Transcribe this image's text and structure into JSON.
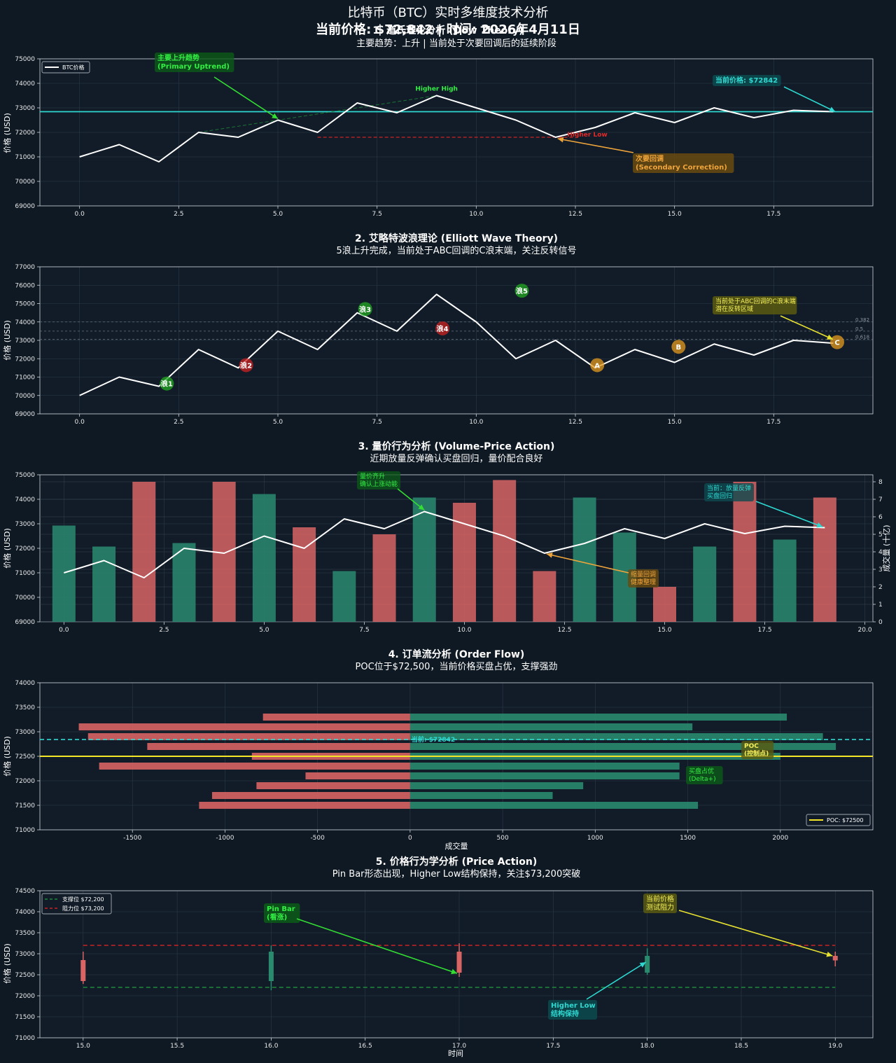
{
  "suptitle": {
    "line1": "比特币（BTC）实时多维度技术分析",
    "line2": "当前价格: $72,842 | 时间: 2026年4月11日"
  },
  "chart_data": [
    {
      "type": "line",
      "title": "1. 道氏理论分析 (Dow Theory)",
      "subtitle": "主要趋势：上升 | 当前处于次要回调后的延续阶段",
      "ylabel": "价格 (USD)",
      "xlabel": "",
      "xlim": [
        -1,
        20
      ],
      "ylim": [
        69000,
        75000
      ],
      "xticks": [
        0.0,
        2.5,
        5.0,
        7.5,
        10.0,
        12.5,
        15.0,
        17.5
      ],
      "xtick_labels": [
        "0.0",
        "2.5",
        "5.0",
        "7.5",
        "10.0",
        "12.5",
        "15.0",
        "17.5"
      ],
      "yticks": [
        69000,
        70000,
        71000,
        72000,
        73000,
        74000,
        75000
      ],
      "ytick_labels": [
        "69000",
        "70000",
        "71000",
        "72000",
        "73000",
        "74000",
        "75000"
      ],
      "series": [
        {
          "name": "BTC价格",
          "x": [
            0,
            1,
            2,
            3,
            4,
            5,
            6,
            7,
            8,
            9,
            10,
            11,
            12,
            13,
            14,
            15,
            16,
            17,
            18,
            19
          ],
          "values": [
            71000,
            71500,
            70800,
            72000,
            71800,
            72500,
            72000,
            73200,
            72800,
            73500,
            73000,
            72500,
            71800,
            72200,
            72800,
            72400,
            73000,
            72600,
            72900,
            72842
          ]
        }
      ],
      "current_price": 72842,
      "secondary_low": 71800,
      "trend_line": {
        "from": [
          3,
          72000
        ],
        "to": [
          9,
          73500
        ]
      },
      "legend": [
        "BTC价格"
      ],
      "labels": {
        "primary": "主要上升趋势\n(Primary Uptrend)",
        "higher_high": "Higher High",
        "higher_low": "Higher Low",
        "current": "当前价格: $72842",
        "correction": "次要回调\n(Secondary Correction)"
      }
    },
    {
      "type": "line",
      "title": "2. 艾略特波浪理论 (Elliott Wave Theory)",
      "subtitle": "5浪上升完成，当前处于ABC回调的C浪末端，关注反转信号",
      "ylabel": "价格 (USD)",
      "xlim": [
        -1,
        20
      ],
      "ylim": [
        69000,
        77000
      ],
      "xticks": [
        0.0,
        2.5,
        5.0,
        7.5,
        10.0,
        12.5,
        15.0,
        17.5
      ],
      "xtick_labels": [
        "0.0",
        "2.5",
        "5.0",
        "7.5",
        "10.0",
        "12.5",
        "15.0",
        "17.5"
      ],
      "yticks": [
        69000,
        70000,
        71000,
        72000,
        73000,
        74000,
        75000,
        76000,
        77000
      ],
      "ytick_labels": [
        "69000",
        "70000",
        "71000",
        "72000",
        "73000",
        "74000",
        "75000",
        "76000",
        "77000"
      ],
      "series": [
        {
          "name": "BTC价格",
          "x": [
            0,
            1,
            2,
            3,
            4,
            5,
            6,
            7,
            8,
            9,
            10,
            11,
            12,
            13,
            14,
            15,
            16,
            17,
            18,
            19
          ],
          "values": [
            70000,
            71000,
            70500,
            72500,
            71500,
            73500,
            72500,
            74500,
            73500,
            75500,
            74000,
            72000,
            73000,
            71500,
            72500,
            71800,
            72800,
            72200,
            73000,
            72842
          ]
        }
      ],
      "waves": [
        {
          "label": "浪1",
          "x": 2.2,
          "y": 70650,
          "color": "#22aa22"
        },
        {
          "label": "浪2",
          "x": 4.2,
          "y": 71650,
          "color": "#cc2222"
        },
        {
          "label": "浪3",
          "x": 7.2,
          "y": 74700,
          "color": "#22aa22"
        },
        {
          "label": "浪4",
          "x": 9.15,
          "y": 73650,
          "color": "#cc2222"
        },
        {
          "label": "浪5",
          "x": 11.15,
          "y": 75700,
          "color": "#22aa22"
        },
        {
          "label": "A",
          "x": 13.05,
          "y": 71650,
          "color": "#e69a1e"
        },
        {
          "label": "B",
          "x": 15.1,
          "y": 72650,
          "color": "#e69a1e"
        },
        {
          "label": "C",
          "x": 19.1,
          "y": 72900,
          "color": "#e69a1e"
        }
      ],
      "fib_levels": [
        {
          "label": "0.382",
          "y": 74000
        },
        {
          "label": "0.5",
          "y": 73500
        },
        {
          "label": "0.618",
          "y": 73050
        }
      ],
      "annotation": "当前处于ABC回调的C浪末端\n潜在反转区域"
    },
    {
      "type": "bar",
      "title": "3. 量价行为分析 (Volume-Price Action)",
      "subtitle": "近期放量反弹确认买盘回归，量价配合良好",
      "ylabel": "价格 (USD)",
      "ylabel_right": "成交量 (十亿)",
      "xlim": [
        -0.6,
        20.2
      ],
      "ylim": [
        69000,
        75000
      ],
      "ylim_right": [
        0,
        8.4
      ],
      "xticks": [
        0.0,
        2.5,
        5.0,
        7.5,
        10.0,
        12.5,
        15.0,
        17.5,
        20.0
      ],
      "xtick_labels": [
        "0.0",
        "2.5",
        "5.0",
        "7.5",
        "10.0",
        "12.5",
        "15.0",
        "17.5",
        "20.0"
      ],
      "yticks": [
        69000,
        70000,
        71000,
        72000,
        73000,
        74000,
        75000
      ],
      "ytick_labels": [
        "69000",
        "70000",
        "71000",
        "72000",
        "73000",
        "74000",
        "75000"
      ],
      "yticks_right": [
        0,
        1,
        2,
        3,
        4,
        5,
        6,
        7,
        8
      ],
      "ytick_labels_right": [
        "0",
        "1",
        "2",
        "3",
        "4",
        "5",
        "6",
        "7",
        "8"
      ],
      "volumes": [
        5.5,
        4.3,
        8.0,
        4.5,
        8.0,
        7.3,
        5.4,
        2.9,
        5.0,
        7.1,
        6.8,
        8.1,
        2.9,
        7.1,
        5.1,
        2.0,
        4.3,
        8.0,
        4.7,
        7.1
      ],
      "volume_up": [
        true,
        true,
        false,
        true,
        false,
        true,
        false,
        true,
        false,
        true,
        false,
        false,
        false,
        true,
        true,
        false,
        true,
        false,
        true,
        false
      ],
      "price": [
        71000,
        71500,
        70800,
        72000,
        71800,
        72500,
        72000,
        73200,
        72800,
        73500,
        73000,
        72500,
        71800,
        72200,
        72800,
        72400,
        73000,
        72600,
        72900,
        72842
      ],
      "annotations": {
        "top": "量价齐升\n确认上涨动能",
        "pullback": "缩量回调\n健康整理",
        "current": "当前：放量反弹\n买盘回归"
      }
    },
    {
      "type": "bar",
      "orientation": "horizontal",
      "title": "4. 订单流分析 (Order Flow)",
      "subtitle": "POC位于$72,500，当前价格买盘占优，支撑强劲",
      "ylabel": "价格 (USD)",
      "xlabel": "成交量",
      "xlim": [
        -2000,
        2500
      ],
      "ylim": [
        71000,
        74000
      ],
      "xticks": [
        -1500,
        -1000,
        -500,
        0,
        500,
        1000,
        1500,
        2000
      ],
      "xtick_labels": [
        "-1500",
        "-1000",
        "-500",
        "0",
        "500",
        "1000",
        "1500",
        "2000"
      ],
      "yticks": [
        71000,
        71500,
        72000,
        72500,
        73000,
        73500,
        74000
      ],
      "ytick_labels": [
        "71000",
        "71500",
        "72000",
        "72500",
        "73000",
        "73500",
        "74000"
      ],
      "levels": [
        71500,
        71600,
        71700,
        71800,
        71900,
        72000,
        72100,
        72200,
        72300,
        72400,
        72500,
        72600,
        72700,
        72800,
        72900,
        73000,
        73100,
        73200,
        73300,
        73400
      ],
      "sell": [
        -1140,
        -1070,
        -830,
        -565,
        -1680,
        -855,
        -1420,
        -1740,
        -1790,
        -795
      ],
      "sell_levels": [
        71500,
        71700,
        71900,
        72100,
        72300,
        72500,
        72700,
        72900,
        73100,
        73300
      ],
      "buy": [
        1555,
        770,
        935,
        1455,
        1455,
        2000,
        2300,
        2230,
        1525,
        2035
      ],
      "buy_levels": [
        71500,
        71700,
        71900,
        72100,
        72300,
        72500,
        72700,
        72900,
        73100,
        73300
      ],
      "poc": 72500,
      "current_price": 72842,
      "labels": {
        "current": "当前: $72842",
        "poc": "POC\n(控制点)",
        "buy": "买盘占优\n(Delta+)"
      },
      "legend": [
        "POC: $72500"
      ]
    },
    {
      "type": "candlestick",
      "title": "5. 价格行为学分析 (Price Action)",
      "subtitle": "Pin Bar形态出现，Higher Low结构保持，关注$73,200突破",
      "ylabel": "价格 (USD)",
      "xlabel": "时间",
      "xlim": [
        14.77,
        19.2
      ],
      "ylim": [
        71000,
        74500
      ],
      "xticks": [
        15.0,
        15.5,
        16.0,
        16.5,
        17.0,
        17.5,
        18.0,
        18.5,
        19.0
      ],
      "xtick_labels": [
        "15.0",
        "15.5",
        "16.0",
        "16.5",
        "17.0",
        "17.5",
        "18.0",
        "18.5",
        "19.0"
      ],
      "yticks": [
        71000,
        71500,
        72000,
        72500,
        73000,
        73500,
        74000,
        74500
      ],
      "ytick_labels": [
        "71000",
        "71500",
        "72000",
        "72500",
        "73000",
        "73500",
        "74000",
        "74500"
      ],
      "candles": [
        {
          "x": 15,
          "open": 72850,
          "close": 72350,
          "high": 73050,
          "low": 72280
        },
        {
          "x": 16,
          "open": 72350,
          "close": 73050,
          "high": 73200,
          "low": 72130
        },
        {
          "x": 17,
          "open": 73050,
          "close": 72550,
          "high": 73250,
          "low": 72450
        },
        {
          "x": 18,
          "open": 72550,
          "close": 72950,
          "high": 73130,
          "low": 72500
        },
        {
          "x": 19,
          "open": 72950,
          "close": 72842,
          "high": 73050,
          "low": 72700
        }
      ],
      "support": 72200,
      "resistance": 73200,
      "legend": [
        "支撑位 $72,200",
        "阻力位 $73,200"
      ],
      "labels": {
        "pinbar": "Pin Bar\n(看涨)",
        "testing": "当前价格\n测试阻力",
        "higher_low": "Higher Low\n结构保持"
      }
    }
  ]
}
